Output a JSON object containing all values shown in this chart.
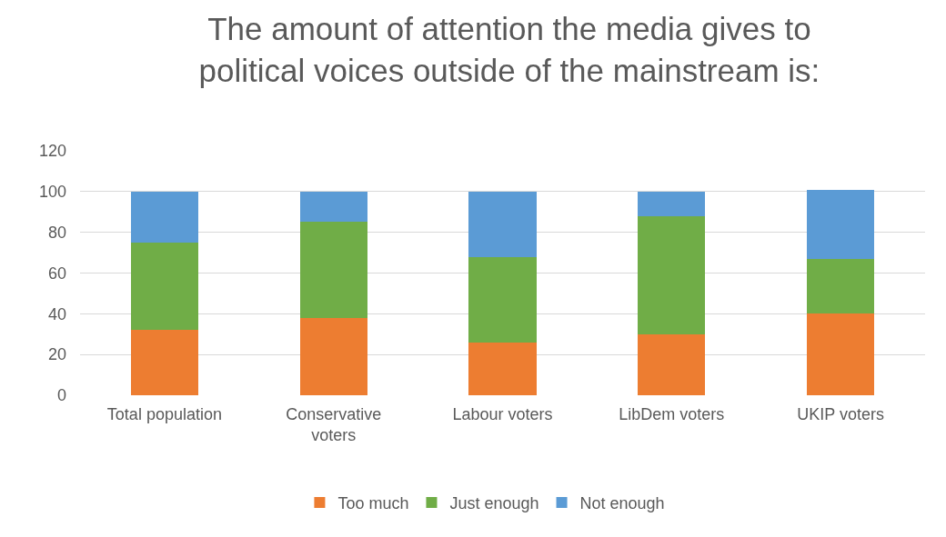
{
  "chart_data": {
    "type": "bar",
    "title": "The amount of attention the media gives to political voices outside of the mainstream is:",
    "categories": [
      "Total population",
      "Conservative voters",
      "Labour voters",
      "LibDem voters",
      "UKIP voters"
    ],
    "series": [
      {
        "name": "Too much",
        "color": "#ed7d31",
        "values": [
          32,
          38,
          26,
          30,
          40
        ]
      },
      {
        "name": "Just enough",
        "color": "#70ad47",
        "values": [
          43,
          47,
          42,
          58,
          27
        ]
      },
      {
        "name": "Not enough",
        "color": "#5b9bd5",
        "values": [
          25,
          15,
          32,
          12,
          34
        ]
      }
    ],
    "stacked": true,
    "ylim": [
      0,
      120
    ],
    "yticks": [
      0,
      20,
      40,
      60,
      80,
      100,
      120
    ],
    "grid": "y",
    "legend": "bottom"
  }
}
